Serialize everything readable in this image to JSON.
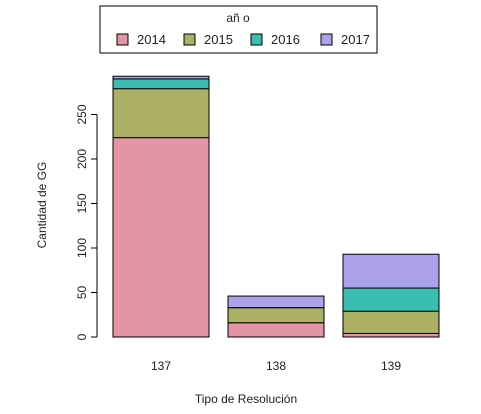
{
  "chart_data": {
    "type": "bar",
    "stacked": true,
    "title": "",
    "xlabel": "Tipo de Resolución",
    "ylabel": "Cantidad de GG",
    "categories": [
      "137",
      "138",
      "139"
    ],
    "ylim": [
      0,
      300
    ],
    "yticks": [
      0,
      50,
      100,
      150,
      200,
      250
    ],
    "grid": false,
    "legend": {
      "title": "añ o",
      "position": "top-center",
      "horizontal": true
    },
    "series": [
      {
        "name": "2014",
        "color": "#E495A5",
        "values": [
          224,
          16,
          4
        ]
      },
      {
        "name": "2015",
        "color": "#ABB065",
        "values": [
          55,
          17,
          25
        ]
      },
      {
        "name": "2016",
        "color": "#39BEB1",
        "values": [
          11,
          0,
          26
        ]
      },
      {
        "name": "2017",
        "color": "#ACA2EC",
        "values": [
          3,
          13,
          38
        ]
      }
    ]
  }
}
